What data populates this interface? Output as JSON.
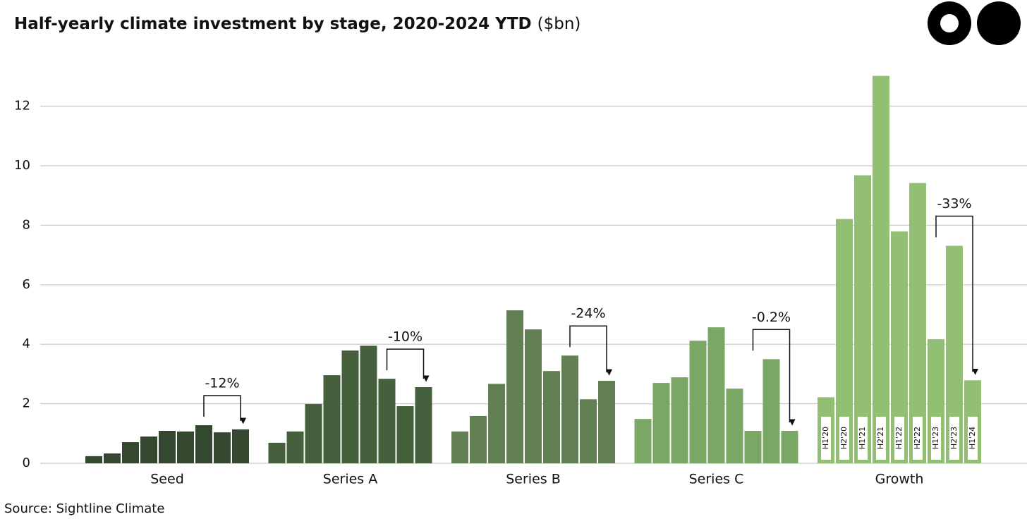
{
  "chart_data": {
    "type": "grouped-bar",
    "title": "Half-yearly climate investment by stage, 2020-2024 YTD",
    "title_unit": "($bn)",
    "source": "Source: Sightline Climate",
    "periods": [
      "H1'20",
      "H2'20",
      "H1'21",
      "H2'21",
      "H1'22",
      "H2'22",
      "H1'23",
      "H2'23",
      "H1'24"
    ],
    "period_labels_in_group": 4,
    "groups": [
      {
        "name": "Seed",
        "color": "#34472f",
        "values": [
          0.24,
          0.33,
          0.71,
          0.9,
          1.09,
          1.07,
          1.28,
          1.04,
          1.14
        ],
        "annotation": "-12%"
      },
      {
        "name": "Series A",
        "color": "#465f3c",
        "values": [
          0.69,
          1.07,
          1.99,
          2.96,
          3.79,
          3.95,
          2.84,
          1.92,
          2.56
        ],
        "annotation": "-10%"
      },
      {
        "name": "Series B",
        "color": "#617f52",
        "values": [
          1.07,
          1.59,
          2.67,
          5.14,
          4.5,
          3.1,
          3.62,
          2.15,
          2.77
        ],
        "annotation": "-24%"
      },
      {
        "name": "Series C",
        "color": "#7ba766",
        "values": [
          1.49,
          2.7,
          2.89,
          4.12,
          4.57,
          2.51,
          1.09,
          3.5,
          1.09
        ],
        "annotation": "-0.2%"
      },
      {
        "name": "Growth",
        "color": "#93bf74",
        "values": [
          2.22,
          8.21,
          9.68,
          13.02,
          7.79,
          9.42,
          4.17,
          7.31,
          2.79
        ],
        "annotation": "-33%"
      }
    ],
    "ylim": [
      0,
      13.2
    ],
    "yticks": [
      0,
      2,
      4,
      6,
      8,
      10,
      12
    ],
    "grid": true
  }
}
